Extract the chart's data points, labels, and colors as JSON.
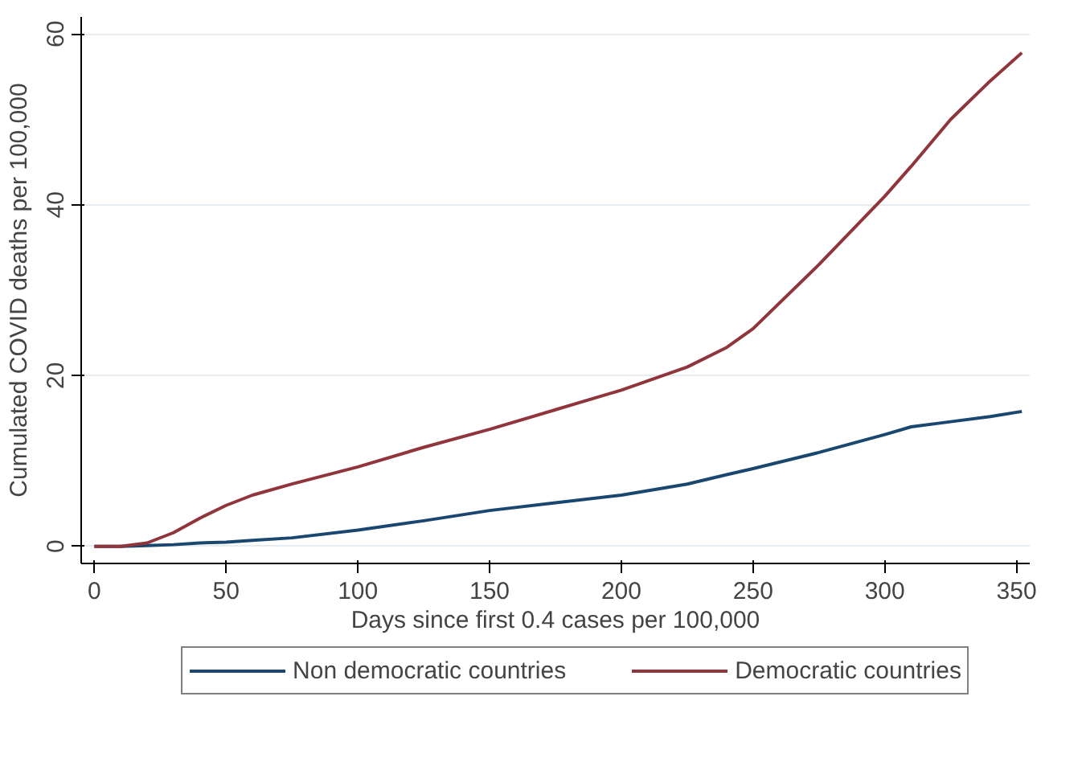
{
  "chart_data": {
    "type": "line",
    "xlabel": "Days since first 0.4 cases per 100,000",
    "ylabel": "Cumulated COVID deaths per 100,000",
    "x": [
      0,
      10,
      20,
      30,
      40,
      50,
      60,
      75,
      100,
      125,
      150,
      175,
      200,
      225,
      240,
      250,
      275,
      300,
      310,
      325,
      340,
      352
    ],
    "series": [
      {
        "name": "Non democratic countries",
        "color": "#1a476f",
        "values": [
          0,
          0,
          0.1,
          0.2,
          0.4,
          0.5,
          0.7,
          1.0,
          1.9,
          3.0,
          4.2,
          5.1,
          6.0,
          7.3,
          8.4,
          9.1,
          11.0,
          13.1,
          14.0,
          14.6,
          15.2,
          15.8
        ]
      },
      {
        "name": "Democratic countries",
        "color": "#90353b",
        "values": [
          0,
          0,
          0.4,
          1.6,
          3.3,
          4.8,
          6.0,
          7.3,
          9.3,
          11.6,
          13.7,
          16.0,
          18.3,
          21.0,
          23.3,
          25.5,
          33.0,
          41.0,
          44.5,
          50.0,
          54.5,
          57.8
        ]
      }
    ],
    "xlim": [
      -5,
      355
    ],
    "ylim": [
      -2,
      62
    ],
    "xticks": [
      0,
      50,
      100,
      150,
      200,
      250,
      300,
      350
    ],
    "yticks": [
      0,
      20,
      40,
      60
    ],
    "grid": "y",
    "legend": "bottom",
    "line_style": "solid",
    "marker": "none"
  }
}
